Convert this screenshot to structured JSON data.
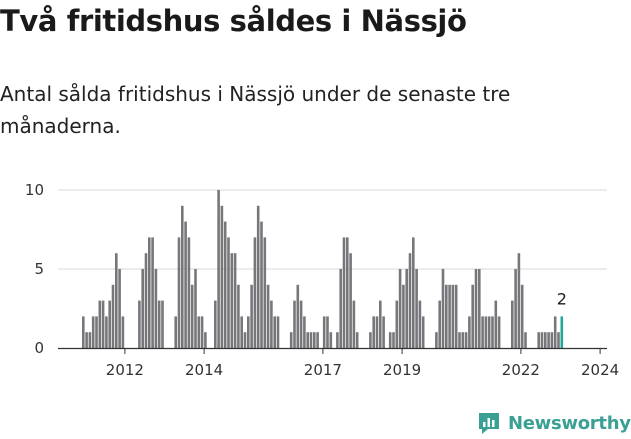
{
  "header": {
    "title": "Två fritidshus såldes i Nässjö",
    "subtitle": "Antal sålda fritidshus i Nässjö under de senaste tre månaderna."
  },
  "brand": {
    "name": "Newsworthy"
  },
  "colors": {
    "bar": "#77767a",
    "highlight": "#26a69a",
    "grid": "#d9d9d9",
    "axis": "#333333",
    "text": "#1a1a1a"
  },
  "chart_data": {
    "type": "bar",
    "title": "",
    "xlabel": "",
    "ylabel": "",
    "ylim": [
      0,
      10
    ],
    "yticks": [
      0,
      5,
      10
    ],
    "ytick_labels": [
      "0",
      "5",
      "10"
    ],
    "xtick_labels": [
      "2012",
      "2014",
      "2017",
      "2019",
      "2022",
      "2024"
    ],
    "xtick_months": [
      13,
      37,
      73,
      97,
      133,
      157
    ],
    "start": "2011-06",
    "highlight_last": true,
    "values": [
      2,
      1,
      1,
      2,
      2,
      3,
      3,
      2,
      3,
      4,
      6,
      5,
      2,
      0,
      0,
      0,
      0,
      3,
      5,
      6,
      7,
      7,
      5,
      3,
      3,
      0,
      0,
      0,
      2,
      7,
      9,
      8,
      7,
      4,
      5,
      2,
      2,
      1,
      0,
      0,
      3,
      10,
      9,
      8,
      7,
      6,
      6,
      4,
      2,
      1,
      2,
      4,
      7,
      9,
      8,
      7,
      4,
      3,
      2,
      2,
      0,
      0,
      0,
      1,
      3,
      4,
      3,
      2,
      1,
      1,
      1,
      1,
      0,
      2,
      2,
      1,
      0,
      1,
      5,
      7,
      7,
      6,
      3,
      1,
      0,
      0,
      0,
      1,
      2,
      2,
      3,
      2,
      0,
      1,
      1,
      3,
      5,
      4,
      5,
      6,
      7,
      5,
      3,
      2,
      0,
      0,
      0,
      1,
      3,
      5,
      4,
      4,
      4,
      4,
      1,
      1,
      1,
      2,
      4,
      5,
      5,
      2,
      2,
      2,
      2,
      3,
      2,
      0,
      0,
      0,
      3,
      5,
      6,
      4,
      1,
      0,
      0,
      0,
      1,
      1,
      1,
      1,
      1,
      2,
      1,
      2
    ]
  }
}
